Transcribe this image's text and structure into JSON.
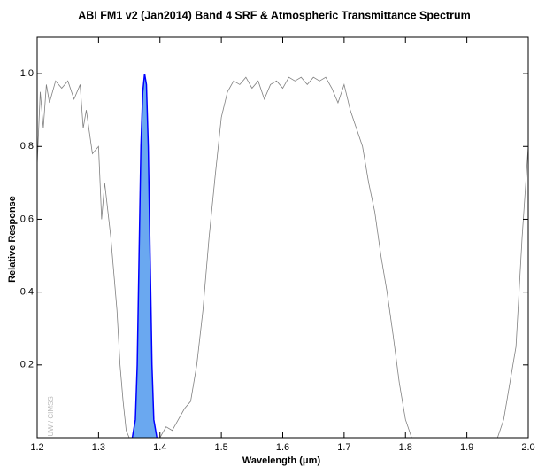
{
  "chart_data": {
    "type": "line",
    "title": "ABI FM1 v2 (Jan2014) Band 4 SRF & Atmospheric Transmittance Spectrum",
    "x_label": "Wavelength (μm)",
    "y_label": "Relative Response",
    "watermark": "UW / CIMSS",
    "xlim": [
      1.2,
      2.0
    ],
    "xticks": [
      1.2,
      1.3,
      1.4,
      1.5,
      1.6,
      1.7,
      1.8,
      1.9,
      {
        "value": 2.0,
        "label": "2.0"
      }
    ],
    "ylim": [
      0,
      1.1
    ],
    "yticks": [
      0.2,
      0.4,
      0.6,
      0.8,
      {
        "value": 1.0,
        "label": "1.0"
      }
    ],
    "series": [
      {
        "color": "#808080",
        "x": [
          1.2,
          1.205,
          1.21,
          1.215,
          1.22,
          1.23,
          1.24,
          1.25,
          1.26,
          1.27,
          1.275,
          1.28,
          1.29,
          1.3,
          1.305,
          1.31,
          1.32,
          1.33,
          1.335,
          1.34,
          1.345,
          1.35,
          1.4,
          1.41,
          1.42,
          1.43,
          1.44,
          1.45,
          1.46,
          1.47,
          1.48,
          1.49,
          1.5,
          1.51,
          1.52,
          1.53,
          1.54,
          1.55,
          1.56,
          1.57,
          1.58,
          1.59,
          1.6,
          1.61,
          1.62,
          1.63,
          1.64,
          1.65,
          1.66,
          1.67,
          1.68,
          1.69,
          1.7,
          1.71,
          1.72,
          1.73,
          1.74,
          1.75,
          1.76,
          1.77,
          1.78,
          1.79,
          1.8,
          1.81,
          1.95,
          1.96,
          1.97,
          1.98,
          1.99,
          2.0
        ],
        "values": [
          0.75,
          0.95,
          0.85,
          0.97,
          0.92,
          0.98,
          0.96,
          0.98,
          0.93,
          0.97,
          0.85,
          0.9,
          0.78,
          0.8,
          0.6,
          0.7,
          0.55,
          0.35,
          0.2,
          0.1,
          0.02,
          0,
          0,
          0.03,
          0.02,
          0.05,
          0.08,
          0.1,
          0.2,
          0.35,
          0.55,
          0.72,
          0.88,
          0.95,
          0.98,
          0.97,
          0.99,
          0.96,
          0.98,
          0.93,
          0.97,
          0.98,
          0.96,
          0.99,
          0.98,
          0.99,
          0.97,
          0.99,
          0.98,
          0.99,
          0.96,
          0.92,
          0.97,
          0.9,
          0.85,
          0.8,
          0.7,
          0.62,
          0.5,
          0.4,
          0.28,
          0.15,
          0.05,
          0,
          0,
          0.05,
          0.15,
          0.25,
          0.55,
          0.8
        ]
      },
      {
        "color": "#0000ff",
        "fill": "#6aa8f0",
        "x": [
          1.355,
          1.36,
          1.363,
          1.366,
          1.369,
          1.372,
          1.375,
          1.378,
          1.381,
          1.384,
          1.387,
          1.39,
          1.395
        ],
        "values": [
          0,
          0.05,
          0.2,
          0.5,
          0.8,
          0.95,
          1.0,
          0.97,
          0.8,
          0.5,
          0.2,
          0.05,
          0
        ]
      }
    ]
  }
}
